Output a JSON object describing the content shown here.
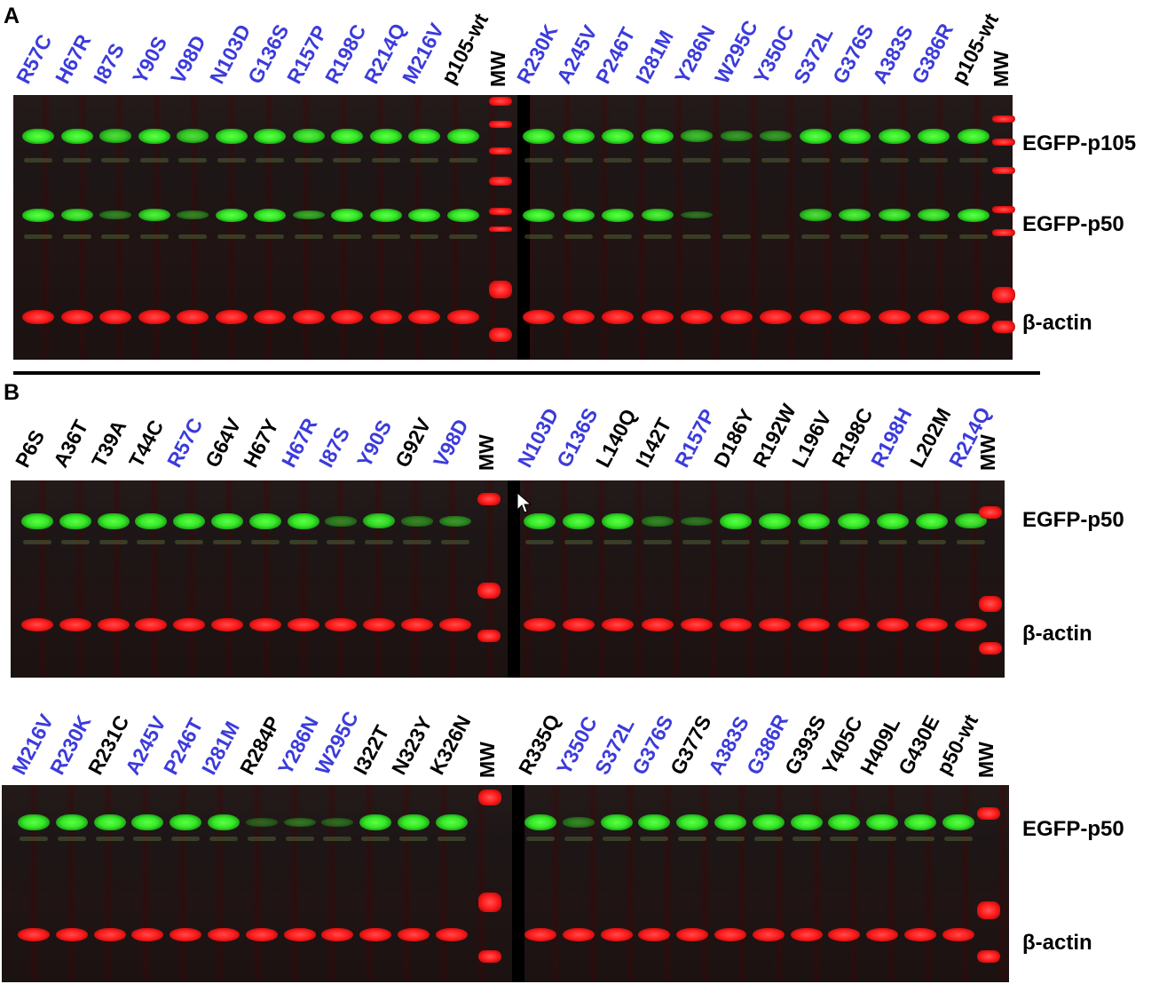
{
  "colors": {
    "mutant_label": "#3b3bdc",
    "normal_label": "#000000",
    "green_band": "#39e82b",
    "red_band": "#ff2020",
    "blot_background": "#1a1313"
  },
  "panels": [
    {
      "letter": "A",
      "band_labels": [
        "EGFP-p105",
        "EGFP-p50",
        "β-actin"
      ],
      "blots": [
        {
          "lanes": [
            {
              "label": "R57C",
              "blue": true,
              "p105": 1.0,
              "p50": 1.0,
              "actin": 1.0
            },
            {
              "label": "H67R",
              "blue": true,
              "p105": 1.0,
              "p50": 0.9,
              "actin": 1.0
            },
            {
              "label": "I87S",
              "blue": true,
              "p105": 0.8,
              "p50": 0.3,
              "actin": 1.0
            },
            {
              "label": "Y90S",
              "blue": true,
              "p105": 1.0,
              "p50": 0.9,
              "actin": 1.0
            },
            {
              "label": "V98D",
              "blue": true,
              "p105": 0.8,
              "p50": 0.3,
              "actin": 1.0
            },
            {
              "label": "N103D",
              "blue": true,
              "p105": 1.0,
              "p50": 1.0,
              "actin": 1.0
            },
            {
              "label": "G136S",
              "blue": true,
              "p105": 1.0,
              "p50": 1.0,
              "actin": 1.0
            },
            {
              "label": "R157P",
              "blue": true,
              "p105": 0.9,
              "p50": 0.5,
              "actin": 1.0
            },
            {
              "label": "R198C",
              "blue": true,
              "p105": 1.0,
              "p50": 1.0,
              "actin": 1.0
            },
            {
              "label": "R214Q",
              "blue": true,
              "p105": 1.0,
              "p50": 1.0,
              "actin": 1.0
            },
            {
              "label": "M216V",
              "blue": true,
              "p105": 1.0,
              "p50": 1.0,
              "actin": 1.0
            },
            {
              "label": "p105-wt",
              "blue": false,
              "p105": 1.0,
              "p50": 1.0,
              "actin": 1.0
            }
          ],
          "mw_label": "MW"
        },
        {
          "lanes": [
            {
              "label": "R230K",
              "blue": true,
              "p105": 1.0,
              "p50": 1.0,
              "actin": 1.0
            },
            {
              "label": "A245V",
              "blue": true,
              "p105": 1.0,
              "p50": 1.0,
              "actin": 1.0
            },
            {
              "label": "P246T",
              "blue": true,
              "p105": 1.0,
              "p50": 1.0,
              "actin": 1.0
            },
            {
              "label": "I281M",
              "blue": true,
              "p105": 1.0,
              "p50": 0.9,
              "actin": 1.0
            },
            {
              "label": "Y286N",
              "blue": true,
              "p105": 0.6,
              "p50": 0.2,
              "actin": 1.0
            },
            {
              "label": "W295C",
              "blue": true,
              "p105": 0.4,
              "p50": 0.0,
              "actin": 1.0
            },
            {
              "label": "Y350C",
              "blue": true,
              "p105": 0.4,
              "p50": 0.0,
              "actin": 1.0
            },
            {
              "label": "S372L",
              "blue": true,
              "p105": 1.0,
              "p50": 0.8,
              "actin": 1.0
            },
            {
              "label": "G376S",
              "blue": true,
              "p105": 1.0,
              "p50": 0.9,
              "actin": 1.0
            },
            {
              "label": "A383S",
              "blue": true,
              "p105": 1.0,
              "p50": 0.9,
              "actin": 1.0
            },
            {
              "label": "G386R",
              "blue": true,
              "p105": 1.0,
              "p50": 0.9,
              "actin": 1.0
            },
            {
              "label": "p105-wt",
              "blue": false,
              "p105": 1.0,
              "p50": 1.0,
              "actin": 1.0
            }
          ],
          "mw_label": "MW"
        }
      ]
    },
    {
      "letter": "B",
      "band_labels": [
        "EGFP-p50",
        "β-actin"
      ],
      "blots": [
        {
          "lanes": [
            {
              "label": "P6S",
              "blue": false,
              "p50": 1.0,
              "actin": 1.0
            },
            {
              "label": "A36T",
              "blue": false,
              "p50": 1.0,
              "actin": 1.0
            },
            {
              "label": "T39A",
              "blue": false,
              "p50": 1.0,
              "actin": 1.0
            },
            {
              "label": "T44C",
              "blue": false,
              "p50": 1.0,
              "actin": 1.0
            },
            {
              "label": "R57C",
              "blue": true,
              "p50": 1.0,
              "actin": 1.0
            },
            {
              "label": "G64V",
              "blue": false,
              "p50": 1.0,
              "actin": 1.0
            },
            {
              "label": "H67Y",
              "blue": false,
              "p50": 1.0,
              "actin": 1.0
            },
            {
              "label": "H67R",
              "blue": true,
              "p50": 1.0,
              "actin": 1.0
            },
            {
              "label": "I87S",
              "blue": true,
              "p50": 0.3,
              "actin": 1.0
            },
            {
              "label": "Y90S",
              "blue": true,
              "p50": 0.9,
              "actin": 1.0
            },
            {
              "label": "G92V",
              "blue": false,
              "p50": 0.3,
              "actin": 1.0
            },
            {
              "label": "V98D",
              "blue": true,
              "p50": 0.4,
              "actin": 1.0
            }
          ],
          "mw_label": "MW"
        },
        {
          "lanes": [
            {
              "label": "N103D",
              "blue": true,
              "p50": 1.0,
              "actin": 1.0
            },
            {
              "label": "G136S",
              "blue": true,
              "p50": 1.0,
              "actin": 1.0
            },
            {
              "label": "L140Q",
              "blue": false,
              "p50": 1.0,
              "actin": 1.0
            },
            {
              "label": "I142T",
              "blue": false,
              "p50": 0.3,
              "actin": 1.0
            },
            {
              "label": "R157P",
              "blue": true,
              "p50": 0.2,
              "actin": 1.0
            },
            {
              "label": "D186Y",
              "blue": false,
              "p50": 1.0,
              "actin": 1.0
            },
            {
              "label": "R192W",
              "blue": false,
              "p50": 1.0,
              "actin": 1.0
            },
            {
              "label": "L196V",
              "blue": false,
              "p50": 1.0,
              "actin": 1.0
            },
            {
              "label": "R198C",
              "blue": false,
              "p50": 1.0,
              "actin": 1.0
            },
            {
              "label": "R198H",
              "blue": true,
              "p50": 1.0,
              "actin": 1.0
            },
            {
              "label": "L202M",
              "blue": false,
              "p50": 1.0,
              "actin": 1.0
            },
            {
              "label": "R214Q",
              "blue": true,
              "p50": 0.9,
              "actin": 1.0
            }
          ],
          "mw_label": "MW"
        }
      ]
    },
    {
      "letter": "",
      "band_labels": [
        "EGFP-p50",
        "β-actin"
      ],
      "blots": [
        {
          "lanes": [
            {
              "label": "M216V",
              "blue": true,
              "p50": 1.0,
              "actin": 1.0
            },
            {
              "label": "R230K",
              "blue": true,
              "p50": 1.0,
              "actin": 1.0
            },
            {
              "label": "R231C",
              "blue": false,
              "p50": 1.0,
              "actin": 1.0
            },
            {
              "label": "A245V",
              "blue": true,
              "p50": 1.0,
              "actin": 1.0
            },
            {
              "label": "P246T",
              "blue": true,
              "p50": 1.0,
              "actin": 1.0
            },
            {
              "label": "I281M",
              "blue": true,
              "p50": 1.0,
              "actin": 1.0
            },
            {
              "label": "R284P",
              "blue": false,
              "p50": 0.1,
              "actin": 1.0
            },
            {
              "label": "Y286N",
              "blue": true,
              "p50": 0.2,
              "actin": 1.0
            },
            {
              "label": "W295C",
              "blue": true,
              "p50": 0.15,
              "actin": 1.0
            },
            {
              "label": "I322T",
              "blue": false,
              "p50": 1.0,
              "actin": 1.0
            },
            {
              "label": "N323Y",
              "blue": false,
              "p50": 1.0,
              "actin": 1.0
            },
            {
              "label": "K326N",
              "blue": false,
              "p50": 1.0,
              "actin": 1.0
            }
          ],
          "mw_label": "MW"
        },
        {
          "lanes": [
            {
              "label": "R335Q",
              "blue": false,
              "p50": 1.0,
              "actin": 1.0
            },
            {
              "label": "Y350C",
              "blue": true,
              "p50": 0.3,
              "actin": 1.0
            },
            {
              "label": "S372L",
              "blue": true,
              "p50": 1.0,
              "actin": 1.0
            },
            {
              "label": "G376S",
              "blue": true,
              "p50": 1.0,
              "actin": 1.0
            },
            {
              "label": "G377S",
              "blue": false,
              "p50": 1.0,
              "actin": 1.0
            },
            {
              "label": "A383S",
              "blue": true,
              "p50": 1.0,
              "actin": 1.0
            },
            {
              "label": "G386R",
              "blue": true,
              "p50": 1.0,
              "actin": 1.0
            },
            {
              "label": "G393S",
              "blue": false,
              "p50": 1.0,
              "actin": 1.0
            },
            {
              "label": "Y405C",
              "blue": false,
              "p50": 1.0,
              "actin": 1.0
            },
            {
              "label": "H409L",
              "blue": false,
              "p50": 1.0,
              "actin": 1.0
            },
            {
              "label": "G430E",
              "blue": false,
              "p50": 1.0,
              "actin": 1.0
            },
            {
              "label": "p50-wt",
              "blue": false,
              "p50": 1.0,
              "actin": 1.0
            }
          ],
          "mw_label": "MW"
        }
      ]
    }
  ]
}
